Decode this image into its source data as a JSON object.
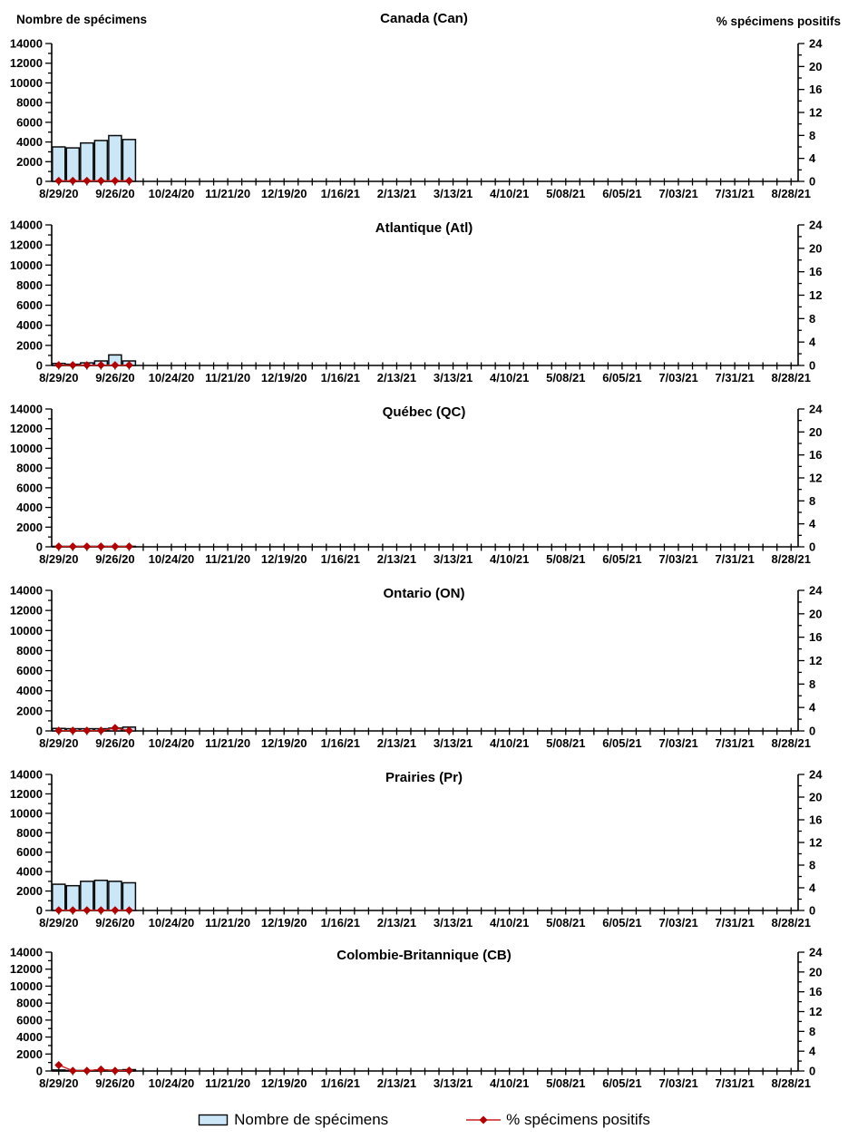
{
  "axes": {
    "left_title": "Nombre de spécimens",
    "right_title": "% spécimens positifs",
    "left_min": 0,
    "left_max": 14000,
    "left_major_step": 2000,
    "left_minor_step": 1000,
    "right_min": 0,
    "right_max": 24,
    "right_major_step": 4,
    "right_minor_step": 2,
    "left_tick_labels": [
      "0",
      "2000",
      "4000",
      "6000",
      "8000",
      "10000",
      "12000",
      "14000"
    ],
    "right_tick_labels": [
      "0",
      "4",
      "8",
      "12",
      "16",
      "20",
      "24"
    ],
    "x_tick_labels": [
      "8/29/20",
      "9/26/20",
      "10/24/20",
      "11/21/20",
      "12/19/20",
      "1/16/21",
      "2/13/21",
      "3/13/21",
      "4/10/21",
      "5/08/21",
      "6/05/21",
      "7/03/21",
      "7/31/21",
      "8/28/21"
    ],
    "weeks_total": 53,
    "x_label_every": 4,
    "grid": false,
    "legend_position": "bottom"
  },
  "legend": {
    "bar_label": "Nombre de spécimens",
    "line_label": "% spécimens positifs"
  },
  "colors": {
    "bar_fill": "#CBE6F7",
    "bar_stroke": "#0a0a0a",
    "line": "#CC2020",
    "marker": "#B40000",
    "axis": "#000000"
  },
  "chart_data": [
    {
      "type": "combo",
      "title": "Canada (Can)",
      "categories": [
        "8/29/20",
        "9/5/20",
        "9/12/20",
        "9/19/20",
        "9/26/20",
        "10/3/20"
      ],
      "series": [
        {
          "name": "Nombre de spécimens",
          "type": "bar",
          "axis": "left",
          "ylim": [
            0,
            14000
          ],
          "values": [
            3500,
            3400,
            3900,
            4150,
            4650,
            4250
          ]
        },
        {
          "name": "% spécimens positifs",
          "type": "line",
          "axis": "right",
          "ylim": [
            0,
            24
          ],
          "values": [
            0.1,
            0.1,
            0.1,
            0.1,
            0.1,
            0.1
          ]
        }
      ]
    },
    {
      "type": "combo",
      "title": "Atlantique (Atl)",
      "categories": [
        "8/29/20",
        "9/5/20",
        "9/12/20",
        "9/19/20",
        "9/26/20",
        "10/3/20"
      ],
      "series": [
        {
          "name": "Nombre de spécimens",
          "type": "bar",
          "axis": "left",
          "ylim": [
            0,
            14000
          ],
          "values": [
            200,
            120,
            260,
            450,
            1050,
            450
          ]
        },
        {
          "name": "% spécimens positifs",
          "type": "line",
          "axis": "right",
          "ylim": [
            0,
            24
          ],
          "values": [
            0.05,
            0.05,
            0.05,
            0.05,
            0.05,
            0.05
          ]
        }
      ]
    },
    {
      "type": "combo",
      "title": "Québec (QC)",
      "categories": [
        "8/29/20",
        "9/5/20",
        "9/12/20",
        "9/19/20",
        "9/26/20",
        "10/3/20"
      ],
      "series": [
        {
          "name": "Nombre de spécimens",
          "type": "bar",
          "axis": "left",
          "ylim": [
            0,
            14000
          ],
          "values": [
            50,
            50,
            50,
            50,
            50,
            50
          ]
        },
        {
          "name": "% spécimens positifs",
          "type": "line",
          "axis": "right",
          "ylim": [
            0,
            24
          ],
          "values": [
            0.05,
            0.05,
            0.05,
            0.05,
            0.05,
            0.05
          ]
        }
      ]
    },
    {
      "type": "combo",
      "title": "Ontario (ON)",
      "categories": [
        "8/29/20",
        "9/5/20",
        "9/12/20",
        "9/19/20",
        "9/26/20",
        "10/3/20"
      ],
      "series": [
        {
          "name": "Nombre de spécimens",
          "type": "bar",
          "axis": "left",
          "ylim": [
            0,
            14000
          ],
          "values": [
            250,
            220,
            220,
            220,
            280,
            380
          ]
        },
        {
          "name": "% spécimens positifs",
          "type": "line",
          "axis": "right",
          "ylim": [
            0,
            24
          ],
          "values": [
            0.05,
            0.05,
            0.05,
            0.05,
            0.5,
            0.05
          ]
        }
      ]
    },
    {
      "type": "combo",
      "title": "Prairies (Pr)",
      "categories": [
        "8/29/20",
        "9/5/20",
        "9/12/20",
        "9/19/20",
        "9/26/20",
        "10/3/20"
      ],
      "series": [
        {
          "name": "Nombre de spécimens",
          "type": "bar",
          "axis": "left",
          "ylim": [
            0,
            14000
          ],
          "values": [
            2700,
            2550,
            3000,
            3100,
            3000,
            2850
          ]
        },
        {
          "name": "% spécimens positifs",
          "type": "line",
          "axis": "right",
          "ylim": [
            0,
            24
          ],
          "values": [
            0.05,
            0.05,
            0.05,
            0.05,
            0.05,
            0.05
          ]
        }
      ]
    },
    {
      "type": "combo",
      "title": "Colombie-Britannique (CB)",
      "categories": [
        "8/29/20",
        "9/5/20",
        "9/12/20",
        "9/19/20",
        "9/26/20",
        "10/3/20"
      ],
      "series": [
        {
          "name": "Nombre de spécimens",
          "type": "bar",
          "axis": "left",
          "ylim": [
            0,
            14000
          ],
          "values": [
            120,
            60,
            60,
            120,
            100,
            160
          ]
        },
        {
          "name": "% spécimens positifs",
          "type": "line",
          "axis": "right",
          "ylim": [
            0,
            24
          ],
          "values": [
            1.2,
            0.05,
            0.05,
            0.3,
            0.05,
            0.1
          ]
        }
      ]
    }
  ]
}
